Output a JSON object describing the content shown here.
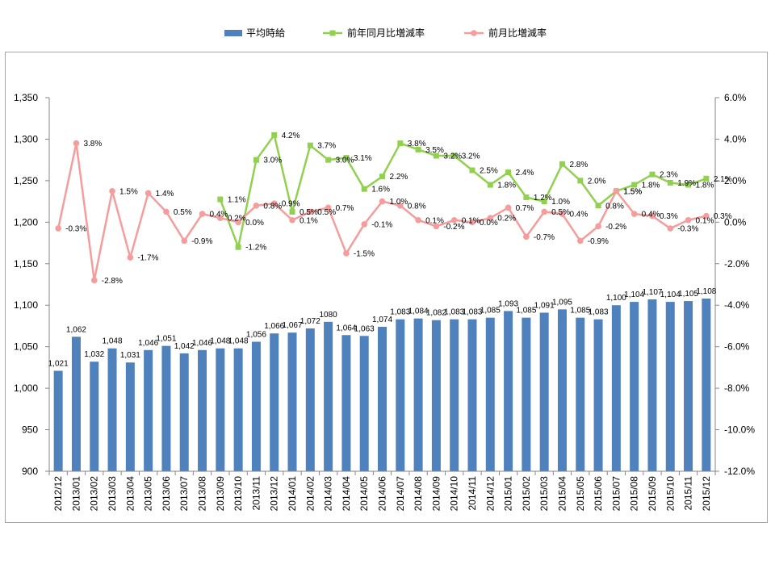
{
  "chart_data": {
    "type": "bar",
    "legend_position": "top",
    "grid": false,
    "categories": [
      "2012/12",
      "2013/01",
      "2013/02",
      "2013/03",
      "2013/04",
      "2013/05",
      "2013/06",
      "2013/07",
      "2013/08",
      "2013/09",
      "2013/10",
      "2013/11",
      "2013/12",
      "2014/01",
      "2014/02",
      "2014/03",
      "2014/04",
      "2014/05",
      "2014/06",
      "2014/07",
      "2014/08",
      "2014/09",
      "2014/10",
      "2014/11",
      "2014/12",
      "2015/01",
      "2015/02",
      "2015/03",
      "2015/04",
      "2015/05",
      "2015/06",
      "2015/07",
      "2015/08",
      "2015/09",
      "2015/10",
      "2015/11",
      "2015/12"
    ],
    "ylim": [
      900,
      1350
    ],
    "y_tick_labels": [
      "900",
      "950",
      "1,000",
      "1,050",
      "1,100",
      "1,150",
      "1,200",
      "1,250",
      "1,300",
      "1,350"
    ],
    "y2lim": [
      -12,
      6
    ],
    "y2_tick_labels": [
      "-12.0%",
      "-10.0%",
      "-8.0%",
      "-6.0%",
      "-4.0%",
      "-2.0%",
      "0.0%",
      "2.0%",
      "4.0%",
      "6.0%"
    ],
    "series": [
      {
        "name": "平均時給",
        "type": "bar",
        "y_axis": "left",
        "color": "#4F81BD",
        "values": [
          1021,
          1062,
          1032,
          1048,
          1031,
          1046,
          1051,
          1042,
          1046,
          1048,
          1048,
          1056,
          1066,
          1067,
          1072,
          1080,
          1064,
          1063,
          1074,
          1083,
          1084,
          1082,
          1083,
          1083,
          1085,
          1093,
          1085,
          1091,
          1095,
          1085,
          1083,
          1100,
          1104,
          1107,
          1104,
          1105,
          1108
        ],
        "data_labels": [
          "1,021",
          "1,062",
          "1,032",
          "1,048",
          "1,031",
          "1,046",
          "1,051",
          "1,042",
          "1,046",
          "1,048",
          "1,048",
          "1,056",
          "1,066",
          "1,067",
          "1,072",
          "1080",
          "1,064",
          "1,063",
          "1,074",
          "1,083",
          "1,084",
          "1,082",
          "1,083",
          "1,083",
          "1,085",
          "1,093",
          "1,085",
          "1,091",
          "1,095",
          "1,085",
          "1,083",
          "1,100",
          "1,104",
          "1,107",
          "1,104",
          "1,105",
          "1,108"
        ]
      },
      {
        "name": "前年同月比増減率",
        "type": "line",
        "y_axis": "right",
        "marker": "square",
        "color": "#92D050",
        "values": [
          null,
          null,
          null,
          null,
          null,
          null,
          null,
          null,
          null,
          1.1,
          -1.2,
          3.0,
          4.2,
          0.5,
          3.7,
          3.0,
          3.1,
          1.6,
          2.2,
          3.8,
          3.5,
          3.2,
          3.2,
          2.5,
          1.8,
          2.4,
          1.2,
          1.0,
          2.8,
          2.0,
          0.8,
          1.5,
          1.8,
          2.3,
          1.9,
          1.8,
          2.1
        ],
        "data_labels": [
          null,
          null,
          null,
          null,
          null,
          null,
          null,
          null,
          null,
          "1.1%",
          "-1.2%",
          "3.0%",
          "4.2%",
          "0.5%",
          "3.7%",
          "3.0%",
          "3.1%",
          "1.6%",
          "2.2%",
          "3.8%",
          "3.5%",
          "3.2%",
          "3.2%",
          "2.5%",
          "1.8%",
          "2.4%",
          "1.2%",
          "1.0%",
          "2.8%",
          "2.0%",
          "0.8%",
          "1.5%",
          "1.8%",
          "2.3%",
          "1.9%",
          "1.8%",
          "2.1%"
        ]
      },
      {
        "name": "前月比増減率",
        "type": "line",
        "y_axis": "right",
        "marker": "circle",
        "color": "#F59D9D",
        "values": [
          -0.3,
          3.8,
          -2.8,
          1.5,
          -1.7,
          1.4,
          0.5,
          -0.9,
          0.4,
          0.2,
          0.0,
          0.8,
          0.9,
          0.1,
          0.5,
          0.7,
          -1.5,
          -0.1,
          1.0,
          0.8,
          0.1,
          -0.2,
          0.1,
          0.0,
          0.2,
          0.7,
          -0.7,
          0.5,
          0.4,
          -0.9,
          -0.2,
          1.5,
          0.4,
          0.3,
          -0.3,
          0.1,
          0.3
        ],
        "data_labels": [
          "-0.3%",
          "3.8%",
          "-2.8%",
          "1.5%",
          "-1.7%",
          "1.4%",
          "0.5%",
          "-0.9%",
          "0.4%",
          "0.2%",
          "0.0%",
          "0.8%",
          "0.9%",
          "0.1%",
          "0.5%",
          "0.7%",
          "-1.5%",
          "-0.1%",
          "1.0%",
          "0.8%",
          "0.1%",
          "-0.2%",
          "0.1%",
          "0.0%",
          "0.2%",
          "0.7%",
          "-0.7%",
          "0.5%",
          "0.4%",
          "-0.9%",
          "-0.2%",
          "1.5%",
          "0.4%",
          "0.3%",
          "-0.3%",
          "0.1%",
          "0.3%"
        ]
      }
    ]
  }
}
